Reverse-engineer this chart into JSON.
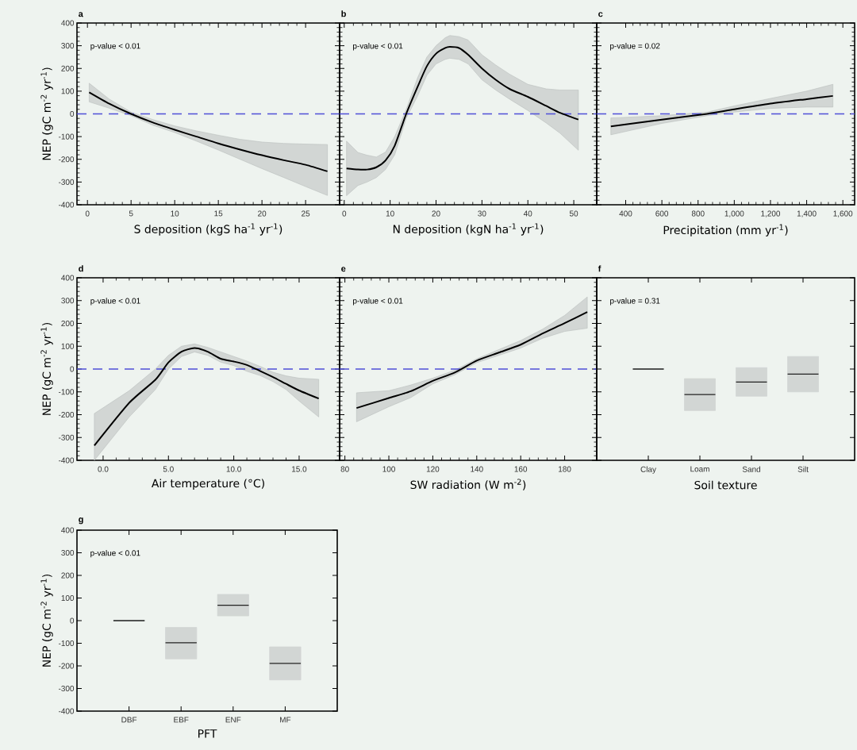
{
  "chart_data": [
    {
      "type": "line",
      "title": "a",
      "xlabel": "S deposition (kgS ha$^{-1}$ yr$^{-1}$)",
      "ylabel": "NEP (gC m$^{-2}$ yr$^{-1}$)",
      "xlim": [
        -1.2,
        28.9
      ],
      "xticks": [
        0,
        5,
        10,
        15,
        20,
        25
      ],
      "ylim": [
        -400,
        400
      ],
      "yticks": [
        -400,
        -300,
        -200,
        -100,
        0,
        100,
        200,
        300,
        400
      ],
      "annotations": [
        "p-value < 0.01"
      ],
      "ref_lines": [
        {
          "axis": "y",
          "value": 0,
          "color": "#4f4fd8",
          "line_style": "dashed"
        }
      ],
      "series": [
        {
          "color": "#000000",
          "x": [
            0.2,
            2.5,
            5,
            7.5,
            10,
            12.5,
            15,
            17.5,
            20,
            22.5,
            25,
            27.5
          ],
          "values": [
            95,
            45,
            0,
            -38,
            -70,
            -100,
            -130,
            -157,
            -182,
            -204,
            -224,
            -253
          ],
          "upper": [
            135,
            65,
            8,
            -25,
            -53,
            -75,
            -94,
            -112,
            -124,
            -130,
            -133,
            -135
          ],
          "lower": [
            53,
            25,
            -8,
            -50,
            -82,
            -120,
            -159,
            -200,
            -241,
            -280,
            -320,
            -359
          ]
        }
      ]
    },
    {
      "type": "line",
      "title": "b",
      "xlabel": "N deposition (kgN ha$^{-1}$ yr$^{-1}$)",
      "xlim": [
        -1,
        55
      ],
      "xticks": [
        0,
        10,
        20,
        30,
        40,
        50
      ],
      "ylim": [
        -400,
        400
      ],
      "yticks": [
        -400,
        -300,
        -200,
        -100,
        0,
        100,
        200,
        300,
        400
      ],
      "tick_labels": "x",
      "annotations": [
        "p-value < 0.01"
      ],
      "ref_lines": [
        {
          "axis": "y",
          "value": 0,
          "color": "#4f4fd8",
          "line_style": "dashed"
        }
      ],
      "series": [
        {
          "color": "#000000",
          "x": [
            0.5,
            3,
            5,
            7,
            9,
            11,
            13.5,
            16,
            18,
            20,
            22,
            23,
            25,
            27,
            30,
            33,
            36,
            40,
            44,
            47,
            51
          ],
          "values": [
            -240,
            -245,
            -245,
            -235,
            -205,
            -140,
            0,
            120,
            210,
            265,
            290,
            295,
            290,
            260,
            200,
            150,
            110,
            75,
            35,
            5,
            -25
          ],
          "upper": [
            -120,
            -170,
            -182,
            -190,
            -168,
            -100,
            20,
            160,
            250,
            300,
            335,
            345,
            340,
            325,
            260,
            215,
            175,
            130,
            110,
            105,
            105
          ],
          "lower": [
            -360,
            -315,
            -300,
            -280,
            -245,
            -180,
            -20,
            80,
            170,
            220,
            240,
            245,
            240,
            220,
            150,
            105,
            65,
            15,
            -40,
            -85,
            -160
          ]
        }
      ]
    },
    {
      "type": "line",
      "title": "c",
      "xlabel": "Precipitation (mm yr$^{-1}$)",
      "xlim": [
        240,
        1665
      ],
      "xticks": [
        400,
        600,
        800,
        {
          "value": 1000,
          "label": "1,000"
        },
        {
          "value": 1200,
          "label": "1,200"
        },
        {
          "value": 1400,
          "label": "1,400"
        },
        {
          "value": 1600,
          "label": "1,600"
        }
      ],
      "ylim": [
        -400,
        400
      ],
      "yticks": [
        -400,
        -300,
        -200,
        -100,
        0,
        100,
        200,
        300,
        400
      ],
      "tick_labels": "x",
      "annotations": [
        "p-value = 0.02"
      ],
      "ref_lines": [
        {
          "axis": "y",
          "value": 0,
          "color": "#4f4fd8",
          "line_style": "dashed"
        }
      ],
      "series": [
        {
          "color": "#000000",
          "x": [
            318,
            600,
            850,
            1000,
            1200,
            1400,
            1545
          ],
          "values": [
            -55,
            -25,
            0,
            20,
            45,
            65,
            79
          ],
          "upper": [
            -18,
            -8,
            8,
            35,
            68,
            100,
            130
          ],
          "lower": [
            -92,
            -42,
            -8,
            8,
            24,
            30,
            30
          ]
        }
      ]
    },
    {
      "type": "line",
      "title": "d",
      "xlabel": "Air temperature (°C)",
      "ylabel": "NEP (gC m$^{-2}$ yr$^{-1}$)",
      "xlim": [
        -2,
        18.1
      ],
      "xticks": [
        {
          "value": 0,
          "label": "0.0"
        },
        {
          "value": 5,
          "label": "5.0"
        },
        {
          "value": 10,
          "label": "10.0"
        },
        {
          "value": 15,
          "label": "15.0"
        }
      ],
      "ylim": [
        -400,
        400
      ],
      "yticks": [
        -400,
        -300,
        -200,
        -100,
        0,
        100,
        200,
        300,
        400
      ],
      "annotations": [
        "p-value < 0.01"
      ],
      "ref_lines": [
        {
          "axis": "y",
          "value": 0,
          "color": "#4f4fd8",
          "line_style": "dashed"
        }
      ],
      "series": [
        {
          "color": "#000000",
          "x": [
            -0.67,
            2,
            4,
            5,
            6,
            7,
            8,
            9,
            10,
            11,
            12,
            13,
            14,
            15,
            16.5
          ],
          "values": [
            -335,
            -148,
            -47,
            29,
            76,
            92,
            76,
            45,
            33,
            18,
            -8,
            -35,
            -65,
            -94,
            -129
          ],
          "upper": [
            -195,
            -95,
            0,
            60,
            100,
            110,
            95,
            75,
            55,
            35,
            12,
            -14,
            -30,
            -40,
            -45
          ],
          "lower": [
            -400,
            -210,
            -90,
            0,
            55,
            75,
            60,
            30,
            15,
            -10,
            -28,
            -55,
            -90,
            -140,
            -210
          ]
        }
      ]
    },
    {
      "type": "line",
      "title": "e",
      "xlabel": "SW radiation (W m$^{-2}$)",
      "xlim": [
        77.6,
        194.6
      ],
      "xticks": [
        80,
        100,
        120,
        140,
        160,
        180
      ],
      "ylim": [
        -400,
        400
      ],
      "yticks": [
        -400,
        -300,
        -200,
        -100,
        0,
        100,
        200,
        300,
        400
      ],
      "tick_labels": "x",
      "annotations": [
        "p-value < 0.01"
      ],
      "ref_lines": [
        {
          "axis": "y",
          "value": 0,
          "color": "#4f4fd8",
          "line_style": "dashed"
        }
      ],
      "series": [
        {
          "color": "#000000",
          "x": [
            85.3,
            100,
            110,
            120,
            130,
            140,
            150,
            160,
            170,
            180,
            190.3
          ],
          "values": [
            -171,
            -127,
            -97,
            -52,
            -15,
            37,
            72,
            107,
            156,
            201,
            250
          ],
          "upper": [
            -104,
            -95,
            -70,
            -40,
            -5,
            45,
            85,
            125,
            175,
            235,
            316
          ],
          "lower": [
            -231,
            -165,
            -125,
            -65,
            -25,
            28,
            60,
            92,
            135,
            165,
            179
          ]
        }
      ]
    },
    {
      "type": "box",
      "title": "f",
      "xlabel": "Soil texture",
      "categories": [
        "Clay",
        "Loam",
        "Sand",
        "Silt"
      ],
      "ylim": [
        -400,
        400
      ],
      "yticks": [
        -400,
        -300,
        -200,
        -100,
        0,
        100,
        200,
        300,
        400
      ],
      "tick_labels": "x",
      "annotations": [
        "p-value = 0.31"
      ],
      "series": [
        {
          "color": "#d2d6d4",
          "boxes": [
            {
              "low": 0,
              "q1": 0,
              "median": 0,
              "q3": 0,
              "high": 0
            },
            {
              "low": -182,
              "q1": -182,
              "median": -112,
              "q3": -42,
              "high": -42
            },
            {
              "low": -119,
              "q1": -119,
              "median": -57,
              "q3": 6,
              "high": 6
            },
            {
              "low": -100,
              "q1": -100,
              "median": -22,
              "q3": 55,
              "high": 55
            }
          ]
        }
      ]
    },
    {
      "type": "box",
      "title": "g",
      "xlabel": "PFT",
      "ylabel": "NEP (gC m$^{-2}$ yr$^{-1}$)",
      "categories": [
        "DBF",
        "EBF",
        "ENF",
        "MF"
      ],
      "ylim": [
        -400,
        400
      ],
      "yticks": [
        -400,
        -300,
        -200,
        -100,
        0,
        100,
        200,
        300,
        400
      ],
      "annotations": [
        "p-value < 0.01"
      ],
      "series": [
        {
          "color": "#d2d6d4",
          "boxes": [
            {
              "low": 0,
              "q1": 0,
              "median": 0,
              "q3": 0,
              "high": 0
            },
            {
              "low": -169,
              "q1": -169,
              "median": -98,
              "q3": -30,
              "high": -30
            },
            {
              "low": 21,
              "q1": 21,
              "median": 68,
              "q3": 116,
              "high": 116
            },
            {
              "low": -262,
              "q1": -262,
              "median": -189,
              "q3": -116,
              "high": -116
            }
          ]
        }
      ]
    }
  ]
}
